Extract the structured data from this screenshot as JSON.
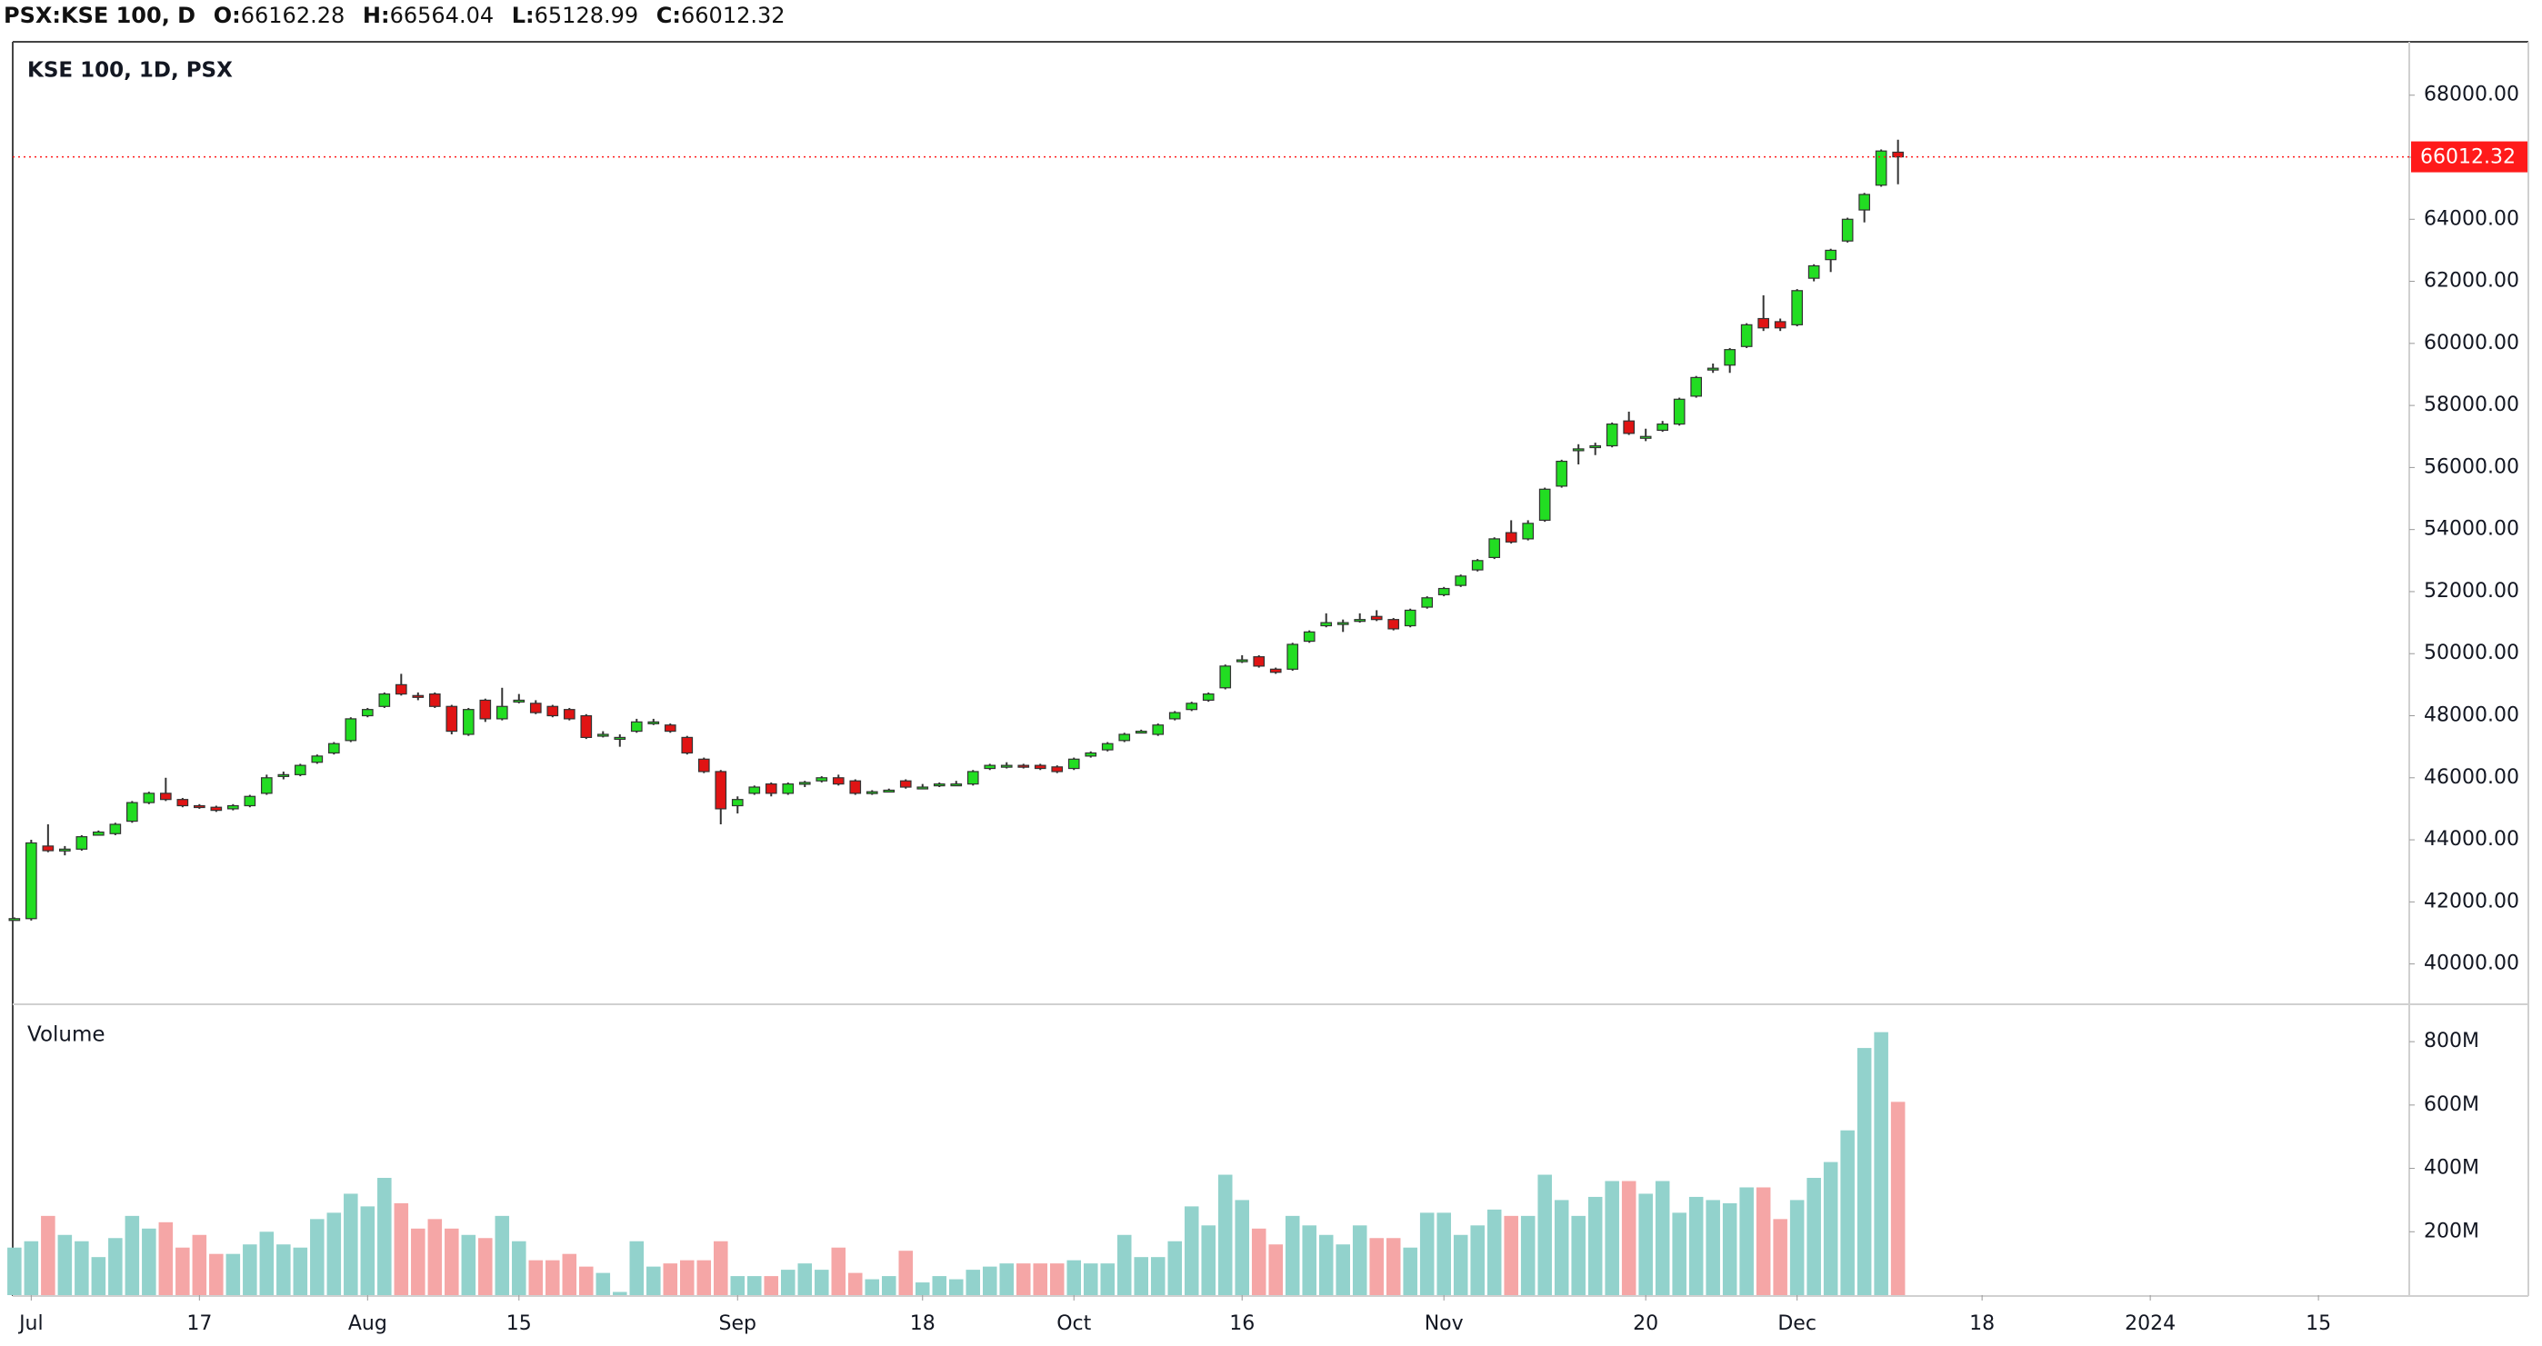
{
  "header": {
    "symbol": "PSX:KSE 100, D",
    "o": "O:",
    "h": "H:",
    "l": "L:",
    "c": "C:"
  },
  "chart_data": {
    "type": "candlestick",
    "title": "KSE 100, 1D, PSX",
    "xlim": [
      -0.1,
      142.4
    ],
    "xticks": [
      {
        "value": 1,
        "label": "Jul"
      },
      {
        "value": 11,
        "label": "17"
      },
      {
        "value": 21,
        "label": "Aug"
      },
      {
        "value": 30,
        "label": "15"
      },
      {
        "value": 43,
        "label": "Sep"
      },
      {
        "value": 54,
        "label": "18"
      },
      {
        "value": 63,
        "label": "Oct"
      },
      {
        "value": 73,
        "label": "16"
      },
      {
        "value": 85,
        "label": "Nov"
      },
      {
        "value": 97,
        "label": "20"
      },
      {
        "value": 106,
        "label": "Dec"
      },
      {
        "value": 117,
        "label": "18"
      },
      {
        "value": 127,
        "label": "2024"
      },
      {
        "value": 137,
        "label": "15"
      }
    ],
    "ylim": [
      38700,
      69720
    ],
    "yticks": [
      {
        "value": 68000,
        "label": "68000.00"
      },
      {
        "value": 66000,
        "label": "66000.00"
      },
      {
        "value": 64000,
        "label": "64000.00"
      },
      {
        "value": 62000,
        "label": "62000.00"
      },
      {
        "value": 60000,
        "label": "60000.00"
      },
      {
        "value": 58000,
        "label": "58000.00"
      },
      {
        "value": 56000,
        "label": "56000.00"
      },
      {
        "value": 54000,
        "label": "54000.00"
      },
      {
        "value": 52000,
        "label": "52000.00"
      },
      {
        "value": 50000,
        "label": "50000.00"
      },
      {
        "value": 48000,
        "label": "48000.00"
      },
      {
        "value": 46000,
        "label": "46000.00"
      },
      {
        "value": 44000,
        "label": "44000.00"
      },
      {
        "value": 42000,
        "label": "42000.00"
      },
      {
        "value": 40000,
        "label": "40000.00"
      }
    ],
    "up_color": "#22dd22",
    "down_color": "#e01414",
    "wick_color": "#333333",
    "last_price_color": "#ff1a1a",
    "open": [
      41450,
      41460,
      43800,
      43650,
      43700,
      44150,
      44200,
      44600,
      45200,
      45500,
      45300,
      45100,
      45050,
      45000,
      45100,
      45500,
      46050,
      46100,
      46500,
      46800,
      47200,
      48000,
      48300,
      49000,
      48650,
      48700,
      48300,
      47400,
      48500,
      47900,
      48500,
      48400,
      48300,
      48200,
      48000,
      47400,
      47300,
      47500,
      47800,
      47700,
      47300,
      46600,
      46200,
      45100,
      45500,
      45800,
      45500,
      45800,
      45900,
      46000,
      45900,
      45550,
      45600,
      45900,
      45700,
      45750,
      45800,
      45800,
      46300,
      46400,
      46400,
      46400,
      46350,
      46300,
      46700,
      46900,
      47200,
      47500,
      47400,
      47900,
      48200,
      48500,
      48900,
      49800,
      49900,
      49500,
      49500,
      50400,
      50900,
      51000,
      51050,
      51200,
      51100,
      50900,
      51500,
      51900,
      52200,
      52700,
      53100,
      53900,
      53700,
      54300,
      55400,
      56600,
      56700,
      56700,
      57500,
      57000,
      57200,
      57400,
      58300,
      59200,
      59300,
      59900,
      60800,
      60700,
      60600,
      62100,
      62700,
      63300,
      64300,
      65100,
      66162.28
    ],
    "high": [
      41500,
      44000,
      44500,
      43800,
      44150,
      44300,
      44550,
      45250,
      45550,
      46000,
      45350,
      45150,
      45100,
      45150,
      45450,
      46100,
      46200,
      46450,
      46750,
      47150,
      47950,
      48250,
      48750,
      49350,
      48750,
      48750,
      48350,
      48250,
      48550,
      48900,
      48700,
      48500,
      48350,
      48250,
      48050,
      47500,
      47400,
      47900,
      47900,
      47750,
      47350,
      46650,
      46250,
      45400,
      45750,
      45850,
      45850,
      45900,
      46050,
      46100,
      45950,
      45600,
      45650,
      45950,
      45800,
      45850,
      45900,
      46250,
      46450,
      46500,
      46450,
      46450,
      46400,
      46650,
      46850,
      47150,
      47450,
      47550,
      47750,
      48150,
      48450,
      48750,
      49650,
      49950,
      49950,
      49550,
      50350,
      50750,
      51300,
      51100,
      51300,
      51400,
      51150,
      51450,
      51850,
      52150,
      52550,
      53050,
      53750,
      54300,
      54300,
      55350,
      56250,
      56750,
      56800,
      57450,
      57800,
      57250,
      57500,
      58250,
      58950,
      59350,
      59850,
      60650,
      61550,
      60800,
      61750,
      62550,
      63050,
      64050,
      64850,
      66250,
      66564.04
    ],
    "low": [
      41400,
      41400,
      43600,
      43500,
      43650,
      44150,
      44150,
      44550,
      45150,
      45250,
      45050,
      45000,
      44900,
      44950,
      45050,
      45450,
      45950,
      46050,
      46450,
      46750,
      47150,
      47950,
      48250,
      48650,
      48500,
      48250,
      47400,
      47350,
      47800,
      47850,
      48400,
      48050,
      47950,
      47850,
      47250,
      47300,
      47000,
      47450,
      47700,
      47450,
      46750,
      46150,
      44500,
      44850,
      45450,
      45400,
      45450,
      45700,
      45850,
      45750,
      45450,
      45450,
      45550,
      45650,
      45650,
      45700,
      45750,
      45750,
      46250,
      46300,
      46300,
      46250,
      46150,
      46250,
      46650,
      46850,
      47150,
      47450,
      47350,
      47850,
      48150,
      48450,
      48850,
      49700,
      49550,
      49350,
      49450,
      50350,
      50850,
      50700,
      51000,
      51050,
      50750,
      50850,
      51450,
      51850,
      52150,
      52650,
      53050,
      53550,
      53650,
      54250,
      55350,
      56100,
      56400,
      56650,
      57050,
      56850,
      57150,
      57350,
      58250,
      59050,
      59050,
      59850,
      60400,
      60400,
      60550,
      62000,
      62300,
      63250,
      63900,
      65050,
      65128.99
    ],
    "close": [
      41460,
      43900,
      43650,
      43700,
      44100,
      44250,
      44500,
      45200,
      45500,
      45300,
      45100,
      45050,
      44950,
      45100,
      45400,
      46000,
      46100,
      46400,
      46700,
      47100,
      47900,
      48200,
      48700,
      48700,
      48600,
      48300,
      47500,
      48200,
      47900,
      48300,
      48500,
      48100,
      48000,
      47900,
      47300,
      47400,
      47300,
      47800,
      47800,
      47500,
      46800,
      46200,
      45000,
      45300,
      45700,
      45500,
      45800,
      45850,
      46000,
      45800,
      45500,
      45550,
      45600,
      45700,
      45700,
      45800,
      45800,
      46200,
      46400,
      46400,
      46350,
      46300,
      46200,
      46600,
      46800,
      47100,
      47400,
      47500,
      47700,
      48100,
      48400,
      48700,
      49600,
      49800,
      49600,
      49400,
      50300,
      50700,
      51000,
      51000,
      51100,
      51100,
      50800,
      51400,
      51800,
      52100,
      52500,
      53000,
      53700,
      53600,
      54200,
      55300,
      56200,
      56600,
      56700,
      57400,
      57100,
      57000,
      57400,
      58200,
      58900,
      59200,
      59800,
      60600,
      60500,
      60500,
      61700,
      62500,
      63000,
      64000,
      64800,
      66200,
      66012.32
    ],
    "volume": {
      "title": "Volume",
      "up_color": "#92d2cc",
      "down_color": "#f5a6a6",
      "ylim": [
        0,
        918
      ],
      "yticks": [
        {
          "value": 800,
          "label": "800M"
        },
        {
          "value": 600,
          "label": "600M"
        },
        {
          "value": 400,
          "label": "400M"
        },
        {
          "value": 200,
          "label": "200M"
        }
      ],
      "values": [
        150,
        170,
        250,
        190,
        170,
        120,
        180,
        250,
        210,
        230,
        150,
        190,
        130,
        130,
        160,
        200,
        160,
        150,
        240,
        260,
        320,
        280,
        370,
        290,
        210,
        240,
        210,
        190,
        180,
        250,
        170,
        110,
        110,
        130,
        90,
        70,
        10,
        170,
        90,
        100,
        110,
        110,
        170,
        60,
        60,
        60,
        80,
        100,
        80,
        150,
        70,
        50,
        60,
        140,
        40,
        60,
        50,
        80,
        90,
        100,
        100,
        100,
        100,
        110,
        100,
        100,
        190,
        120,
        120,
        170,
        280,
        220,
        380,
        300,
        210,
        160,
        250,
        220,
        190,
        160,
        220,
        180,
        180,
        150,
        260,
        260,
        190,
        220,
        270,
        250,
        250,
        380,
        300,
        250,
        310,
        360,
        360,
        320,
        360,
        260,
        310,
        300,
        290,
        340,
        340,
        240,
        300,
        370,
        420,
        520,
        780,
        830,
        610
      ]
    }
  }
}
